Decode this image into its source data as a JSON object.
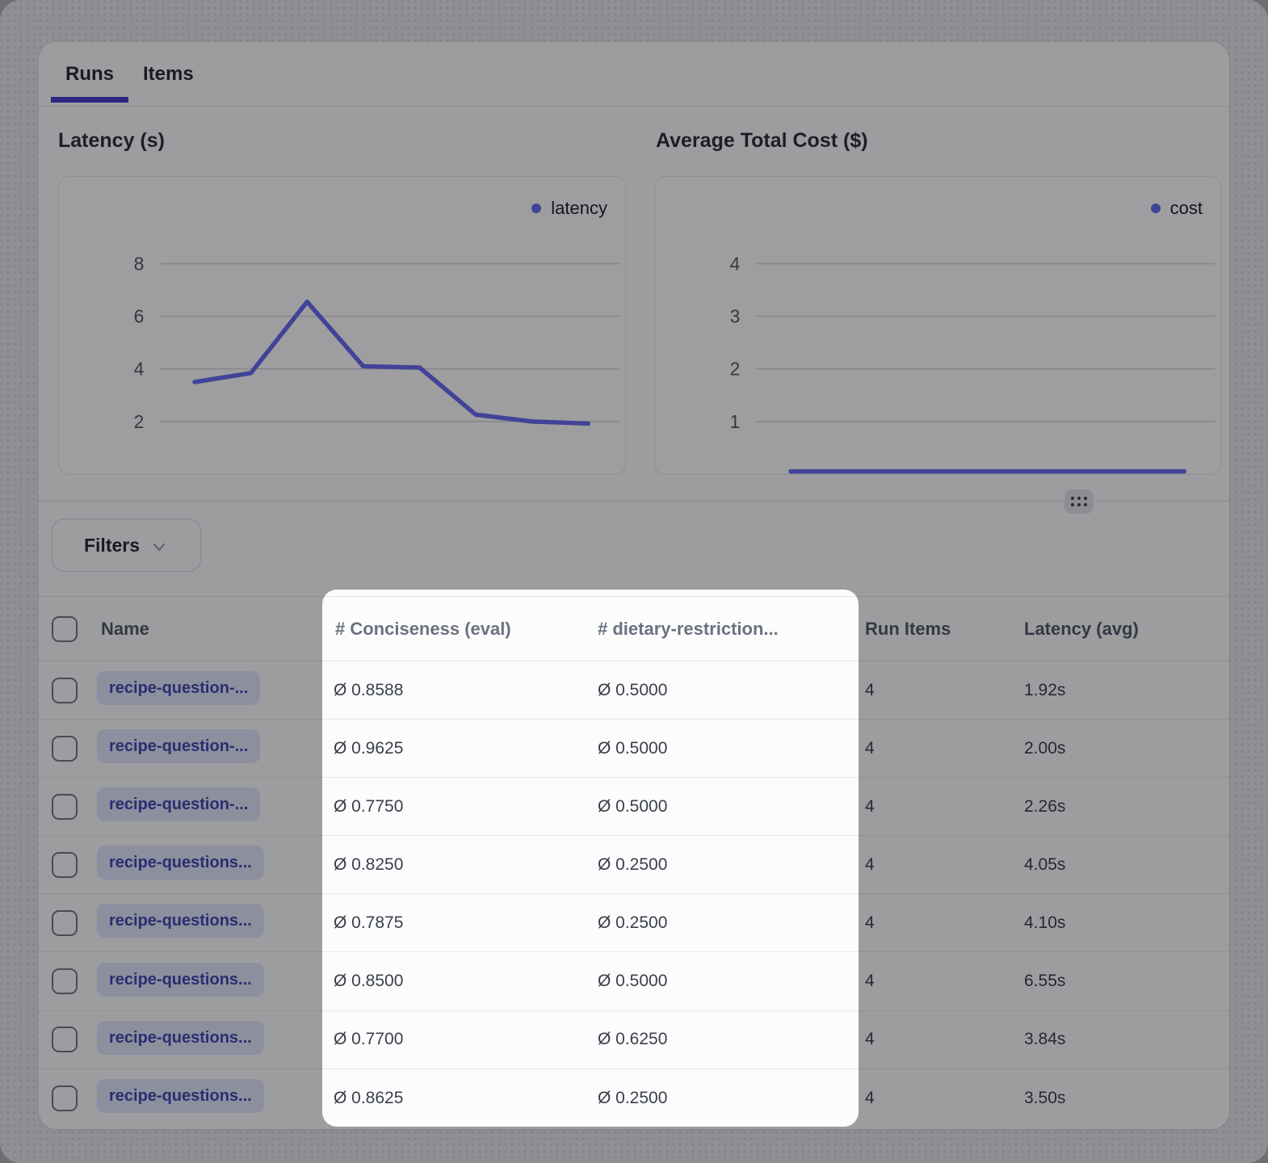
{
  "colors": {
    "accent": "#6366f1",
    "tab_underline": "#4338ca",
    "dim_overlay": "rgba(16,16,20,0.40)",
    "badge_bg": "#e0e4fa",
    "badge_text": "#3d44ad"
  },
  "tabs": {
    "items": [
      {
        "label": "Runs",
        "active": true
      },
      {
        "label": "Items",
        "active": false
      }
    ]
  },
  "chart_data": [
    {
      "type": "line",
      "title": "Latency (s)",
      "x": [
        1,
        2,
        3,
        4,
        5,
        6,
        7,
        8
      ],
      "series": [
        {
          "name": "latency",
          "color": "#6366f1",
          "values": [
            3.5,
            3.84,
            6.55,
            4.1,
            4.05,
            2.26,
            2.0,
            1.92
          ]
        }
      ],
      "yticks": [
        8,
        6,
        4,
        2
      ],
      "ylim": [
        0,
        11.3
      ],
      "xlabel": "",
      "ylabel": "",
      "grid": true,
      "grid_color": "#d4d4d9",
      "tick_color": "#52525b",
      "legend_position": "top-right"
    },
    {
      "type": "line",
      "title": "Average Total Cost ($)",
      "x": [
        1,
        2,
        3,
        4,
        5,
        6,
        7,
        8
      ],
      "series": [
        {
          "name": "cost",
          "color": "#6366f1",
          "values": [
            0.05,
            0.05,
            0.05,
            0.05,
            0.05,
            0.05,
            0.05,
            0.05
          ]
        }
      ],
      "yticks": [
        4,
        3,
        2,
        1
      ],
      "ylim": [
        0,
        5.65
      ],
      "xlabel": "",
      "ylabel": "",
      "grid": true,
      "grid_color": "#d4d4d9",
      "tick_color": "#52525b",
      "legend_position": "top-right"
    }
  ],
  "filters": {
    "label": "Filters"
  },
  "table": {
    "columns": [
      {
        "id": "name",
        "label": "Name"
      },
      {
        "id": "conciseness",
        "label": "# Conciseness (eval)",
        "highlighted": true
      },
      {
        "id": "dietary",
        "label": "# dietary-restriction...",
        "highlighted": true
      },
      {
        "id": "run_items",
        "label": "Run Items"
      },
      {
        "id": "latency",
        "label": "Latency (avg)"
      }
    ],
    "rows": [
      {
        "name": "recipe-question-...",
        "conciseness": "Ø 0.8588",
        "dietary": "Ø 0.5000",
        "run_items": "4",
        "latency": "1.92s"
      },
      {
        "name": "recipe-question-...",
        "conciseness": "Ø 0.9625",
        "dietary": "Ø 0.5000",
        "run_items": "4",
        "latency": "2.00s"
      },
      {
        "name": "recipe-question-...",
        "conciseness": "Ø 0.7750",
        "dietary": "Ø 0.5000",
        "run_items": "4",
        "latency": "2.26s"
      },
      {
        "name": "recipe-questions...",
        "conciseness": "Ø 0.8250",
        "dietary": "Ø 0.2500",
        "run_items": "4",
        "latency": "4.05s"
      },
      {
        "name": "recipe-questions...",
        "conciseness": "Ø 0.7875",
        "dietary": "Ø 0.2500",
        "run_items": "4",
        "latency": "4.10s"
      },
      {
        "name": "recipe-questions...",
        "conciseness": "Ø 0.8500",
        "dietary": "Ø 0.5000",
        "run_items": "4",
        "latency": "6.55s"
      },
      {
        "name": "recipe-questions...",
        "conciseness": "Ø 0.7700",
        "dietary": "Ø 0.6250",
        "run_items": "4",
        "latency": "3.84s"
      },
      {
        "name": "recipe-questions...",
        "conciseness": "Ø 0.8625",
        "dietary": "Ø 0.2500",
        "run_items": "4",
        "latency": "3.50s"
      }
    ]
  }
}
